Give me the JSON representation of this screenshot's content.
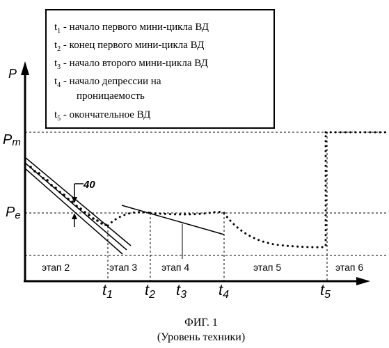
{
  "legend": {
    "items": [
      {
        "sym": "t",
        "sub": "1",
        "text": " - начало первого мини-цикла ВД"
      },
      {
        "sym": "t",
        "sub": "2",
        "text": " - конец первого мини-цикла ВД"
      },
      {
        "sym": "t",
        "sub": "3",
        "text": " - начало второго мини-цикла ВД"
      },
      {
        "sym": "t",
        "sub": "4",
        "text": " - начало депрессии на"
      },
      {
        "sym": "",
        "sub": "",
        "text": "проницаемость"
      },
      {
        "sym": "t",
        "sub": "5",
        "text": " - окончательное ВД"
      }
    ]
  },
  "axes": {
    "y_label": "P",
    "pm": {
      "sym": "P",
      "sub": "m"
    },
    "pe": {
      "sym": "P",
      "sub": "e"
    }
  },
  "callout": "40",
  "stages": [
    "этап 2",
    "этап 3",
    "этап 4",
    "этап 5",
    "этап 6"
  ],
  "times": [
    {
      "sym": "t",
      "sub": "1"
    },
    {
      "sym": "t",
      "sub": "2"
    },
    {
      "sym": "t",
      "sub": "3"
    },
    {
      "sym": "t",
      "sub": "4"
    },
    {
      "sym": "t",
      "sub": "5"
    }
  ],
  "caption": {
    "title": "ФИГ. 1",
    "subtitle": "(Уровень техники)"
  }
}
